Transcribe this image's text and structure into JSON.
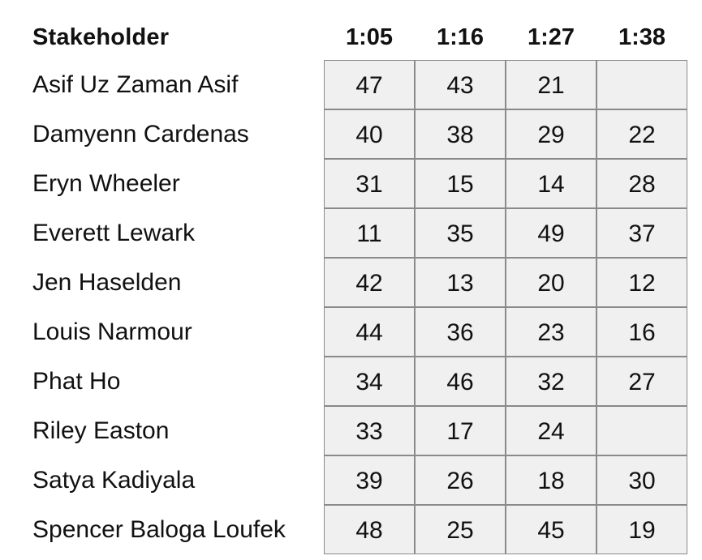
{
  "table": {
    "header_label": "Stakeholder",
    "columns": [
      "1:05",
      "1:16",
      "1:27",
      "1:38"
    ],
    "rows": [
      {
        "name": "Asif Uz Zaman Asif",
        "values": [
          "47",
          "43",
          "21",
          ""
        ]
      },
      {
        "name": "Damyenn Cardenas",
        "values": [
          "40",
          "38",
          "29",
          "22"
        ]
      },
      {
        "name": "Eryn Wheeler",
        "values": [
          "31",
          "15",
          "14",
          "28"
        ]
      },
      {
        "name": "Everett Lewark",
        "values": [
          "11",
          "35",
          "49",
          "37"
        ]
      },
      {
        "name": "Jen Haselden",
        "values": [
          "42",
          "13",
          "20",
          "12"
        ]
      },
      {
        "name": "Louis Narmour",
        "values": [
          "44",
          "36",
          "23",
          "16"
        ]
      },
      {
        "name": "Phat Ho",
        "values": [
          "34",
          "46",
          "32",
          "27"
        ]
      },
      {
        "name": "Riley Easton",
        "values": [
          "33",
          "17",
          "24",
          ""
        ]
      },
      {
        "name": "Satya Kadiyala",
        "values": [
          "39",
          "26",
          "18",
          "30"
        ]
      },
      {
        "name": "Spencer Baloga Loufek",
        "values": [
          "48",
          "25",
          "45",
          "19"
        ]
      }
    ]
  }
}
